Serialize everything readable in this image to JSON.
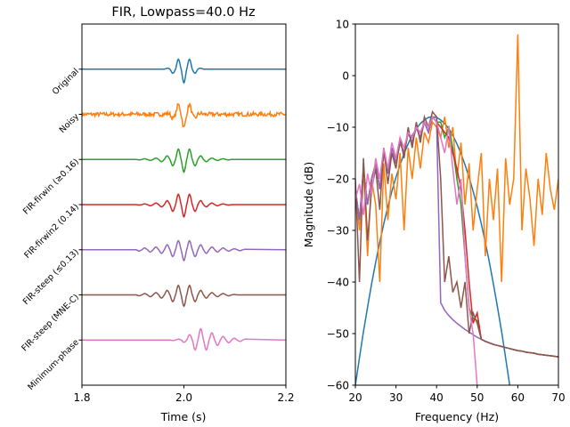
{
  "chart_data": [
    {
      "type": "line",
      "title": "FIR, Lowpass=40.0 Hz",
      "xlabel": "Time (s)",
      "ylabel": "",
      "xlim": [
        1.8,
        2.2
      ],
      "ylim": [
        -7,
        1
      ],
      "xticks": [
        "1.8",
        "2.0",
        "2.2"
      ],
      "xtick_values": [
        1.8,
        2.0,
        2.2
      ],
      "grid": false,
      "yticks": [
        "Original",
        "Noisy",
        "FIR-firwin (≥0.16)",
        "FIR-firwin2 (0.14)",
        "FIR-steep (≤0.13)",
        "FIR-steep (MNE-C)",
        "Minimum-phase"
      ],
      "t_start": 1.912,
      "t_step": 0.0055,
      "series": [
        {
          "name": "Original",
          "offset": 0,
          "color": "#1f77b4",
          "values": [
            0,
            0,
            0,
            0,
            0,
            0,
            0,
            0,
            0,
            0,
            0.02,
            0,
            -0.09,
            0,
            0.22,
            0,
            -0.3,
            0,
            0.22,
            0,
            -0.09,
            0,
            0.02,
            0,
            0,
            0,
            0,
            0,
            0,
            0,
            0,
            0,
            0,
            0,
            0,
            0,
            0,
            0,
            0
          ]
        },
        {
          "name": "Noisy",
          "offset": -1,
          "color": "#ff7f0e",
          "values": [
            0,
            0,
            0,
            0,
            0,
            0,
            0,
            0,
            0,
            0,
            0.02,
            0,
            -0.09,
            0,
            0.22,
            0,
            -0.3,
            0,
            0.22,
            0,
            -0.09,
            0,
            0.02,
            0,
            0,
            0,
            0,
            0,
            0,
            0,
            0,
            0,
            0,
            0,
            0,
            0,
            0,
            0,
            0
          ]
        },
        {
          "name": "FIR-firwin (≥0.16)",
          "offset": -2,
          "color": "#2ca02c",
          "values": [
            -0.01,
            0,
            0.015,
            0,
            -0.02,
            0,
            0.03,
            0,
            -0.05,
            0,
            0.08,
            0,
            -0.14,
            0,
            0.23,
            0,
            -0.28,
            0,
            0.23,
            0,
            -0.14,
            0,
            0.08,
            0,
            -0.05,
            0,
            0.03,
            0,
            -0.02,
            0,
            0.015,
            0,
            -0.01,
            0,
            0,
            0,
            0,
            0,
            0
          ]
        },
        {
          "name": "FIR-firwin2 (0.14)",
          "offset": -3,
          "color": "#d62728",
          "values": [
            -0.01,
            0,
            0.015,
            0,
            -0.025,
            0,
            0.035,
            0,
            -0.05,
            0,
            0.09,
            0,
            -0.15,
            0,
            0.23,
            0,
            -0.27,
            0,
            0.23,
            0,
            -0.15,
            0,
            0.09,
            0,
            -0.05,
            0,
            0.035,
            0,
            -0.025,
            0,
            0.015,
            0,
            -0.01,
            0,
            0,
            0,
            0,
            0,
            0
          ]
        },
        {
          "name": "FIR-steep (≤0.13)",
          "offset": -4,
          "color": "#9467bd",
          "values": [
            -0.03,
            0,
            0.04,
            0,
            -0.05,
            0,
            0.06,
            0,
            -0.08,
            0,
            0.11,
            0,
            -0.15,
            0,
            0.2,
            0,
            -0.24,
            0,
            0.2,
            0,
            -0.15,
            0,
            0.11,
            0,
            -0.08,
            0,
            0.06,
            0,
            -0.05,
            0,
            0.04,
            0,
            -0.03,
            0,
            0.02,
            0,
            -0.02,
            0,
            0.01
          ]
        },
        {
          "name": "FIR-steep (MNE-C)",
          "offset": -5,
          "color": "#8c564b",
          "values": [
            -0.02,
            0,
            0.03,
            0,
            -0.04,
            0,
            0.05,
            0,
            -0.07,
            0,
            0.1,
            0,
            -0.15,
            0,
            0.21,
            0,
            -0.25,
            0,
            0.21,
            0,
            -0.15,
            0,
            0.1,
            0,
            -0.07,
            0,
            0.05,
            0,
            -0.04,
            0,
            0.03,
            0,
            -0.02,
            0,
            0.01,
            0,
            0,
            0,
            0
          ]
        },
        {
          "name": "Minimum-phase",
          "offset": -6,
          "color": "#e377c2",
          "values": [
            0,
            0,
            0,
            0,
            0,
            0,
            0,
            0,
            0,
            0,
            0,
            0,
            -0.01,
            0,
            0.02,
            0,
            -0.05,
            0,
            0.12,
            0,
            -0.22,
            0,
            0.25,
            0,
            -0.22,
            0,
            0.16,
            0,
            -0.12,
            0,
            0.08,
            0,
            -0.06,
            0,
            0.04,
            0,
            -0.03,
            0,
            0.02
          ]
        }
      ]
    },
    {
      "type": "line",
      "title": "",
      "xlabel": "Frequency (Hz)",
      "ylabel": "Magnitude (dB)",
      "xlim": [
        20,
        70
      ],
      "ylim": [
        -60,
        10
      ],
      "xticks": [
        "20",
        "30",
        "40",
        "50",
        "60",
        "70"
      ],
      "yticks": [
        "10",
        "0",
        "−10",
        "−20",
        "−30",
        "−40",
        "−50",
        "−60"
      ],
      "grid": false,
      "f_start": 20,
      "f_step": 1,
      "series": [
        {
          "name": "Original",
          "color": "#1f77b4",
          "values": [
            -60,
            -54.7,
            -49.6,
            -44.9,
            -40.4,
            -36.2,
            -32.3,
            -28.7,
            -25.4,
            -22.4,
            -19.7,
            -17.3,
            -15.1,
            -13.2,
            -11.6,
            -10.3,
            -9.3,
            -8.6,
            -8.1,
            -8,
            -8.1,
            -8.6,
            -9.3,
            -10.3,
            -11.6,
            -13.2,
            -15.1,
            -17.3,
            -19.7,
            -22.4,
            -25.4,
            -28.7,
            -32.3,
            -36.2,
            -40.4,
            -44.9,
            -49.6,
            -54.7,
            -60,
            null,
            null,
            null,
            null,
            null,
            null,
            null,
            null,
            null,
            null,
            null,
            null
          ]
        },
        {
          "name": "Noisy",
          "color": "#ff7f0e",
          "values": [
            -22,
            -30,
            -18,
            -35,
            -20,
            -25,
            -40,
            -17,
            -28,
            -19,
            -24,
            -15,
            -30,
            -14,
            -20,
            -12,
            -18,
            -11,
            -13,
            -9,
            -10,
            -12,
            -8,
            -14,
            -10,
            -20,
            -13,
            -25,
            -17,
            -30,
            -22,
            -15,
            -35,
            -20,
            -28,
            -18,
            -40,
            -16,
            -25,
            -20,
            8,
            -30,
            -18,
            -24,
            -33,
            -20,
            -27,
            -15,
            -22,
            -26,
            -20
          ]
        },
        {
          "name": "FIR-firwin (≥0.16)",
          "color": "#2ca02c",
          "values": [
            -22,
            -28,
            -18,
            -25,
            -20,
            -17,
            -22,
            -15,
            -19,
            -14,
            -17,
            -13,
            -15,
            -11,
            -13,
            -10,
            -12,
            -9,
            -11,
            -8,
            -9,
            -9,
            -12,
            -10,
            -14,
            -20,
            -25,
            -35,
            -45,
            -47,
            -47.5,
            -51.1,
            -51.5,
            -51.8,
            -52.1,
            -52.3,
            -52.5,
            -52.7,
            -52.9,
            -53.1,
            -53.3,
            -53.4,
            -53.6,
            -53.7,
            -53.8,
            -54,
            -54.1,
            -54.2,
            -54.3,
            -54.4,
            -54.5
          ]
        },
        {
          "name": "FIR-firwin2 (0.14)",
          "color": "#d62728",
          "values": [
            -22,
            -28,
            -18,
            -25,
            -20,
            -17,
            -22,
            -15,
            -19,
            -14,
            -17,
            -13,
            -15,
            -11,
            -13,
            -10,
            -12,
            -9,
            -11,
            -8,
            -9,
            -10,
            -11,
            -12,
            -15,
            -18,
            -22,
            -30,
            -40,
            -48,
            -46,
            -51.1,
            -51.5,
            -51.8,
            -52.1,
            -52.3,
            -52.5,
            -52.7,
            -52.9,
            -53.1,
            -53.3,
            -53.4,
            -53.6,
            -53.7,
            -53.8,
            -54,
            -54.1,
            -54.2,
            -54.3,
            -54.4,
            -54.5
          ]
        },
        {
          "name": "FIR-steep (≤0.13)",
          "color": "#9467bd",
          "values": [
            -22,
            -28,
            -18,
            -25,
            -20,
            -17,
            -22,
            -15,
            -19,
            -14,
            -17,
            -13,
            -15,
            -11,
            -13,
            -10,
            -12,
            -9,
            -11,
            -8,
            -9,
            -44,
            -45.5,
            -46.5,
            -47.3,
            -48,
            -48.6,
            -49.2,
            -49.7,
            -50.2,
            -50.7,
            -51.1,
            -51.5,
            -51.8,
            -52.1,
            -52.3,
            -52.5,
            -52.7,
            -52.9,
            -53.1,
            -53.3,
            -53.4,
            -53.6,
            -53.7,
            -53.8,
            -54,
            -54.1,
            -54.2,
            -54.3,
            -54.4,
            -54.5
          ]
        },
        {
          "name": "FIR-steep (MNE-C)",
          "color": "#8c564b",
          "values": [
            -20,
            -40,
            -16,
            -32,
            -22,
            -18,
            -26,
            -14,
            -21,
            -15,
            -18,
            -12,
            -16,
            -10,
            -14,
            -9,
            -13,
            -8,
            -10,
            -7,
            -8,
            -20,
            -40,
            -35,
            -42,
            -40,
            -45,
            -40,
            -50,
            -46,
            -48,
            -51.1,
            -51.5,
            -51.8,
            -52.1,
            -52.3,
            -52.5,
            -52.7,
            -52.9,
            -53.1,
            -53.3,
            -53.4,
            -53.6,
            -53.7,
            -53.8,
            -54,
            -54.1,
            -54.2,
            -54.3,
            -54.4,
            -54.5
          ]
        },
        {
          "name": "Minimum-phase",
          "color": "#e377c2",
          "values": [
            -24,
            -21,
            -27,
            -19,
            -23,
            -16,
            -20,
            -14,
            -18,
            -13,
            -16,
            -12,
            -14,
            -11,
            -12,
            -10,
            -11,
            -9,
            -10,
            -8,
            -9,
            -12,
            -15,
            -10,
            -18,
            -25,
            -20,
            -35,
            -45,
            -50,
            -60,
            null,
            null,
            null,
            null,
            null,
            null,
            null,
            null,
            null,
            null,
            null,
            null,
            null,
            null,
            null,
            null,
            null,
            null,
            null,
            null
          ]
        }
      ]
    }
  ]
}
